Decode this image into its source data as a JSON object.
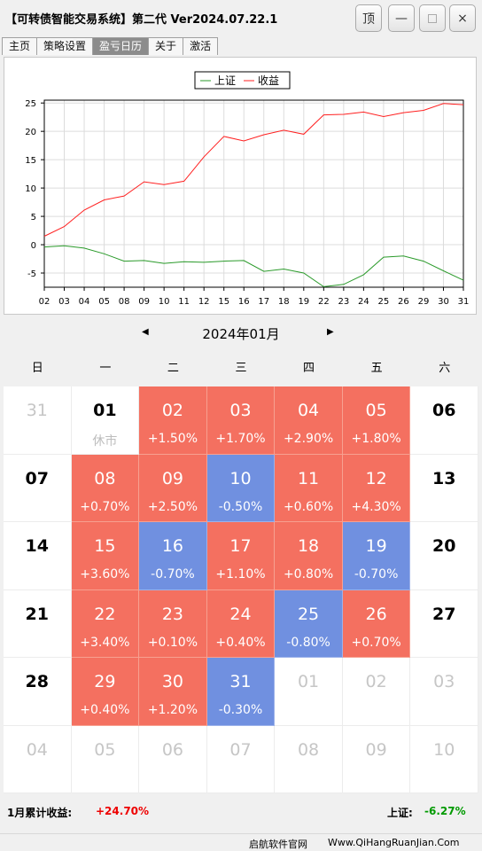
{
  "window": {
    "title": "【可转债智能交易系统】第二代 Ver2024.07.22.1",
    "top_label": "顶",
    "min_label": "—",
    "close_label": "×"
  },
  "tabs": [
    {
      "label": "主页",
      "active": false
    },
    {
      "label": "策略设置",
      "active": false
    },
    {
      "label": "盈亏日历",
      "active": true
    },
    {
      "label": "关于",
      "active": false
    },
    {
      "label": "激活",
      "active": false
    }
  ],
  "chart_data": {
    "type": "line",
    "x": [
      "02",
      "03",
      "04",
      "05",
      "08",
      "09",
      "10",
      "11",
      "12",
      "15",
      "16",
      "17",
      "18",
      "19",
      "22",
      "23",
      "24",
      "25",
      "26",
      "29",
      "30",
      "31"
    ],
    "series": [
      {
        "name": "上证",
        "color": "#2a9a2a",
        "values": [
          -0.4,
          -0.2,
          -0.6,
          -1.6,
          -2.9,
          -2.8,
          -3.3,
          -3.0,
          -3.1,
          -2.9,
          -2.8,
          -4.7,
          -4.3,
          -5.0,
          -7.4,
          -7.0,
          -5.3,
          -2.2,
          -2.0,
          -2.9,
          -4.6,
          -6.27
        ]
      },
      {
        "name": "收益",
        "color": "#ff2020",
        "values": [
          1.5,
          3.2,
          6.1,
          7.9,
          8.6,
          11.1,
          10.6,
          11.2,
          15.5,
          19.1,
          18.3,
          19.4,
          20.2,
          19.5,
          22.9,
          23.0,
          23.4,
          22.6,
          23.3,
          23.7,
          24.9,
          24.7
        ]
      }
    ],
    "y_ticks": [
      -5,
      0,
      5,
      10,
      15,
      20,
      25
    ],
    "ylim": [
      -7.5,
      25.5
    ],
    "grid": true,
    "legend": "top-center"
  },
  "calendar": {
    "month_label": "2024年01月",
    "prev_icon": "◀",
    "next_icon": "▶",
    "weekdays": [
      "日",
      "一",
      "二",
      "三",
      "四",
      "五",
      "六"
    ],
    "cells": [
      {
        "day": "31",
        "change": "",
        "state": "other"
      },
      {
        "day": "01",
        "change": "休市",
        "state": "flat"
      },
      {
        "day": "02",
        "change": "+1.50%",
        "state": "up"
      },
      {
        "day": "03",
        "change": "+1.70%",
        "state": "up"
      },
      {
        "day": "04",
        "change": "+2.90%",
        "state": "up"
      },
      {
        "day": "05",
        "change": "+1.80%",
        "state": "up"
      },
      {
        "day": "06",
        "change": "",
        "state": "flat"
      },
      {
        "day": "07",
        "change": "",
        "state": "flat"
      },
      {
        "day": "08",
        "change": "+0.70%",
        "state": "up"
      },
      {
        "day": "09",
        "change": "+2.50%",
        "state": "up"
      },
      {
        "day": "10",
        "change": "-0.50%",
        "state": "down"
      },
      {
        "day": "11",
        "change": "+0.60%",
        "state": "up"
      },
      {
        "day": "12",
        "change": "+4.30%",
        "state": "up"
      },
      {
        "day": "13",
        "change": "",
        "state": "flat"
      },
      {
        "day": "14",
        "change": "",
        "state": "flat"
      },
      {
        "day": "15",
        "change": "+3.60%",
        "state": "up"
      },
      {
        "day": "16",
        "change": "-0.70%",
        "state": "down"
      },
      {
        "day": "17",
        "change": "+1.10%",
        "state": "up"
      },
      {
        "day": "18",
        "change": "+0.80%",
        "state": "up"
      },
      {
        "day": "19",
        "change": "-0.70%",
        "state": "down"
      },
      {
        "day": "20",
        "change": "",
        "state": "flat"
      },
      {
        "day": "21",
        "change": "",
        "state": "flat"
      },
      {
        "day": "22",
        "change": "+3.40%",
        "state": "up"
      },
      {
        "day": "23",
        "change": "+0.10%",
        "state": "up"
      },
      {
        "day": "24",
        "change": "+0.40%",
        "state": "up"
      },
      {
        "day": "25",
        "change": "-0.80%",
        "state": "down"
      },
      {
        "day": "26",
        "change": "+0.70%",
        "state": "up"
      },
      {
        "day": "27",
        "change": "",
        "state": "flat"
      },
      {
        "day": "28",
        "change": "",
        "state": "flat"
      },
      {
        "day": "29",
        "change": "+0.40%",
        "state": "up"
      },
      {
        "day": "30",
        "change": "+1.20%",
        "state": "up"
      },
      {
        "day": "31",
        "change": "-0.30%",
        "state": "down"
      },
      {
        "day": "01",
        "change": "",
        "state": "other"
      },
      {
        "day": "02",
        "change": "",
        "state": "other"
      },
      {
        "day": "03",
        "change": "",
        "state": "other"
      },
      {
        "day": "04",
        "change": "",
        "state": "other"
      },
      {
        "day": "05",
        "change": "",
        "state": "other"
      },
      {
        "day": "06",
        "change": "",
        "state": "other"
      },
      {
        "day": "07",
        "change": "",
        "state": "other"
      },
      {
        "day": "08",
        "change": "",
        "state": "other"
      },
      {
        "day": "09",
        "change": "",
        "state": "other"
      },
      {
        "day": "10",
        "change": "",
        "state": "other"
      }
    ]
  },
  "summary": {
    "month_return_label": "1月累计收益:",
    "month_return_value": "+24.70%",
    "index_label": "上证:",
    "index_value": "-6.27%"
  },
  "footer": {
    "site_name": "启航软件官网",
    "site_url": "Www.QiHangRuanJian.Com"
  }
}
